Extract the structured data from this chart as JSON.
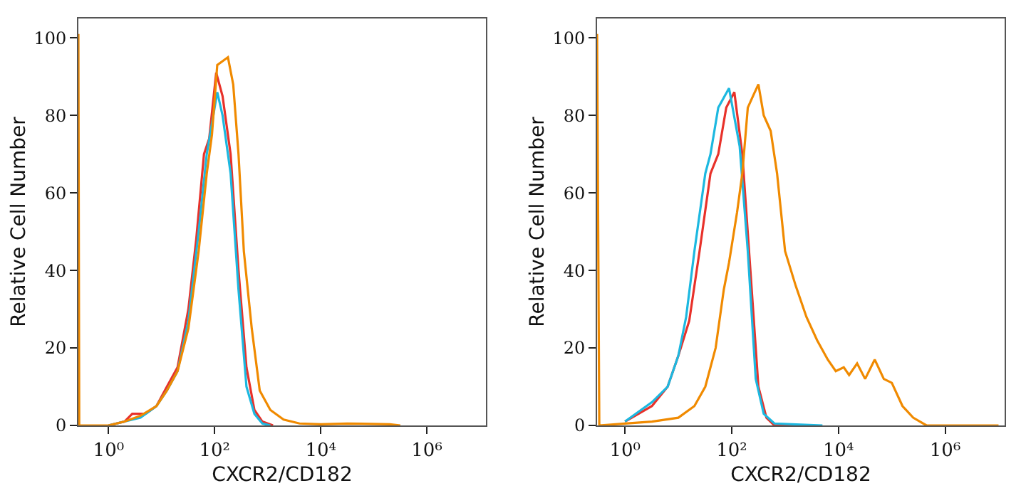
{
  "chart_data": [
    {
      "type": "line",
      "xlabel": "CXCR2/CD182",
      "ylabel": "Relative Cell Number",
      "log": "x",
      "marker": "none",
      "line_style": "solid",
      "xlim": [
        0.27,
        13000000
      ],
      "xticks": [
        {
          "value": 1,
          "label": "10⁰"
        },
        {
          "value": 100,
          "label": "10²"
        },
        {
          "value": 10000,
          "label": "10⁴"
        },
        {
          "value": 1000000,
          "label": "10⁶"
        }
      ],
      "ylim": [
        0,
        105
      ],
      "yticks": [
        0,
        20,
        40,
        60,
        80,
        100
      ],
      "series": [
        {
          "color": "#e8312a",
          "x": [
            1,
            2,
            2.8,
            5,
            8,
            12.6,
            20,
            32,
            45,
            63,
            79,
            107,
            141,
            200,
            282,
            398,
            562,
            794,
            1259
          ],
          "values": [
            0,
            1,
            3,
            3,
            5,
            10,
            15,
            30,
            48,
            70,
            74,
            91,
            85,
            70,
            40,
            15,
            4,
            1,
            0
          ]
        },
        {
          "color": "#1cb8e0",
          "x": [
            1,
            2,
            4,
            8,
            12.6,
            20,
            32,
            50,
            71,
            100,
            112,
            141,
            200,
            282,
            398,
            562,
            794,
            1122
          ],
          "values": [
            0,
            1,
            2,
            5,
            9,
            14,
            27,
            50,
            70,
            82,
            86,
            80,
            65,
            35,
            10,
            3,
            0.5,
            0
          ]
        },
        {
          "color": "#f08a00",
          "x": [
            0.27,
            0.28,
            1,
            2,
            4,
            8,
            12.6,
            20,
            32,
            50,
            71,
            89,
            112,
            141,
            178,
            224,
            282,
            355,
            501,
            708,
            1122,
            1995,
            3981,
            10000,
            31620,
            199500,
            316200
          ],
          "values": [
            101,
            0,
            0,
            1,
            2.5,
            5,
            9,
            14,
            25,
            45,
            65,
            75,
            93,
            94,
            95,
            88,
            70,
            45,
            25,
            9,
            4,
            1.5,
            0.5,
            0.3,
            0.5,
            0.3,
            0
          ]
        }
      ]
    },
    {
      "type": "line",
      "xlabel": "CXCR2/CD182",
      "ylabel": "Relative Cell Number",
      "log": "x",
      "marker": "none",
      "line_style": "solid",
      "xlim": [
        0.3,
        13000000
      ],
      "xticks": [
        {
          "value": 1,
          "label": "10⁰"
        },
        {
          "value": 100,
          "label": "10²"
        },
        {
          "value": 10000,
          "label": "10⁴"
        },
        {
          "value": 1000000,
          "label": "10⁶"
        }
      ],
      "ylim": [
        0,
        105
      ],
      "yticks": [
        0,
        20,
        40,
        60,
        80,
        100
      ],
      "series": [
        {
          "color": "#e8312a",
          "x": [
            1,
            3.2,
            6.3,
            10,
            16,
            25,
            40,
            56,
            79,
            112,
            158,
            224,
            316,
            447,
            631,
            3162
          ],
          "values": [
            1,
            5,
            10,
            18,
            27,
            45,
            65,
            70,
            82,
            86,
            70,
            40,
            10,
            2,
            0,
            0
          ]
        },
        {
          "color": "#1cb8e0",
          "x": [
            1,
            3.2,
            6.3,
            10,
            14,
            20,
            32,
            40,
            56,
            89,
            141,
            200,
            282,
            398,
            631,
            5012
          ],
          "values": [
            1,
            6,
            10,
            18,
            28,
            45,
            65,
            70,
            82,
            87,
            72,
            45,
            12,
            3,
            0.5,
            0
          ]
        },
        {
          "color": "#f08a00",
          "x": [
            0.3,
            0.33,
            1,
            3.2,
            10,
            20,
            32,
            50,
            71,
            89,
            126,
            158,
            200,
            251,
            316,
            398,
            537,
            708,
            1000,
            1585,
            2512,
            3981,
            6310,
            8913,
            12590,
            15850,
            22390,
            31620,
            47860,
            70790,
            100000,
            158500,
            251200,
            446700,
            3160000,
            10000000
          ],
          "values": [
            101,
            0,
            0.5,
            1,
            2,
            5,
            10,
            20,
            35,
            42,
            55,
            65,
            82,
            85,
            88,
            80,
            76,
            65,
            45,
            36,
            28,
            22,
            17,
            14,
            15,
            13,
            16,
            12,
            17,
            12,
            11,
            5,
            2,
            0,
            0,
            0
          ]
        }
      ]
    }
  ]
}
